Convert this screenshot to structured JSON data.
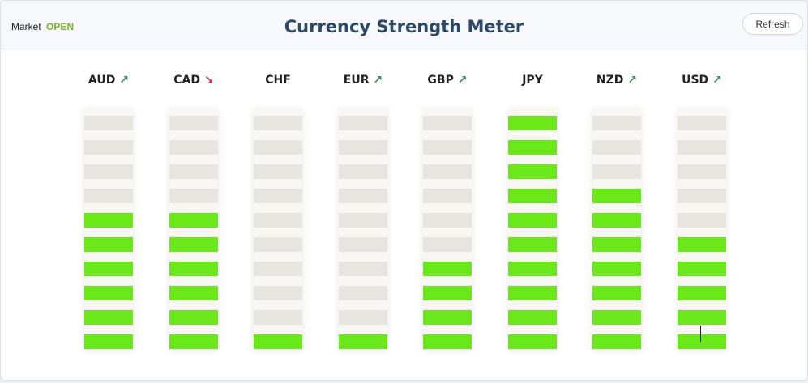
{
  "header": {
    "market_label": "Market",
    "market_status": "OPEN",
    "title": "Currency Strength Meter",
    "refresh_label": "Refresh"
  },
  "meter": {
    "segments_total": 10,
    "active_color": "#6ae81a",
    "inactive_color": "#e6e5df",
    "up_color": "#3d8a5a",
    "down_color": "#c23040",
    "currencies": [
      {
        "code": "AUD",
        "trend": "up",
        "arrow": "↗",
        "strength": 6
      },
      {
        "code": "CAD",
        "trend": "down",
        "arrow": "↘",
        "strength": 6
      },
      {
        "code": "CHF",
        "trend": "none",
        "arrow": "",
        "strength": 1
      },
      {
        "code": "EUR",
        "trend": "up",
        "arrow": "↗",
        "strength": 1
      },
      {
        "code": "GBP",
        "trend": "up",
        "arrow": "↗",
        "strength": 4
      },
      {
        "code": "JPY",
        "trend": "none",
        "arrow": "",
        "strength": 10
      },
      {
        "code": "NZD",
        "trend": "up",
        "arrow": "↗",
        "strength": 7
      },
      {
        "code": "USD",
        "trend": "up",
        "arrow": "↗",
        "strength": 5
      }
    ]
  }
}
